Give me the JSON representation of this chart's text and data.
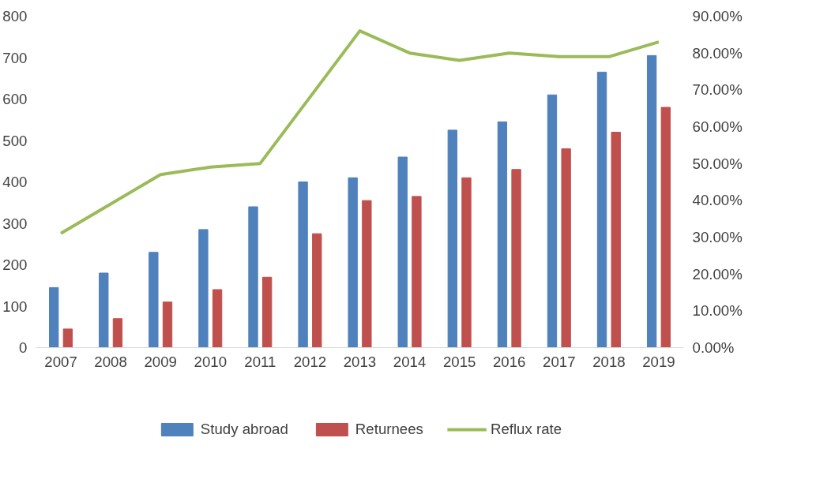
{
  "chart_data": {
    "type": "bar",
    "categories": [
      "2007",
      "2008",
      "2009",
      "2010",
      "2011",
      "2012",
      "2013",
      "2014",
      "2015",
      "2016",
      "2017",
      "2018",
      "2019"
    ],
    "series": [
      {
        "name": "Study abroad",
        "color": "#4f81bd",
        "values": [
          145,
          180,
          230,
          285,
          340,
          400,
          410,
          460,
          525,
          545,
          610,
          665,
          705
        ]
      },
      {
        "name": "Returnees",
        "color": "#c0504d",
        "values": [
          45,
          70,
          110,
          140,
          170,
          275,
          355,
          365,
          410,
          430,
          480,
          520,
          580
        ]
      },
      {
        "name": "Reflux rate",
        "type": "line",
        "axis": "y2",
        "color": "#9bbb59",
        "values": [
          31,
          39,
          47,
          49,
          50,
          68,
          86,
          80,
          78,
          80,
          79,
          79,
          83
        ]
      }
    ],
    "ylim": [
      0,
      800
    ],
    "yticks": [
      0,
      100,
      200,
      300,
      400,
      500,
      600,
      700,
      800
    ],
    "y2lim": [
      0,
      90
    ],
    "y2ticks": [
      {
        "value": 0,
        "label": "0.00%"
      },
      {
        "value": 10,
        "label": "10.00%"
      },
      {
        "value": 20,
        "label": "20.00%"
      },
      {
        "value": 30,
        "label": "30.00%"
      },
      {
        "value": 40,
        "label": "40.00%"
      },
      {
        "value": 50,
        "label": "50.00%"
      },
      {
        "value": 60,
        "label": "60.00%"
      },
      {
        "value": 70,
        "label": "70.00%"
      },
      {
        "value": 80,
        "label": "80.00%"
      },
      {
        "value": 90,
        "label": "90.00%"
      }
    ],
    "legend": "bottom",
    "grid": false,
    "marker": "none",
    "line_style": "solid"
  }
}
